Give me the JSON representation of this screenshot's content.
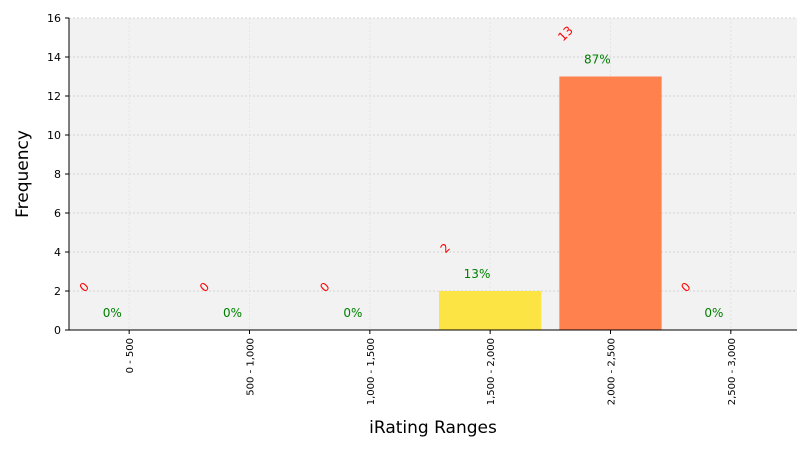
{
  "chart_data": {
    "type": "bar",
    "title": "",
    "xlabel": "iRating Ranges",
    "ylabel": "Frequency",
    "categories": [
      "0 - 500",
      "500 - 1,000",
      "1,000 - 1,500",
      "1,500 - 2,000",
      "2,000 - 2,500",
      "2,500 - 3,000"
    ],
    "values": [
      0,
      0,
      0,
      2,
      13,
      0
    ],
    "percent_labels": [
      "0%",
      "0%",
      "0%",
      "13%",
      "87%",
      "0%"
    ],
    "bar_colors": [
      "#fbe33a",
      "#fbe33a",
      "#fbe33a",
      "#fbe33a",
      "#ff7a45",
      "#ff7a45"
    ],
    "count_label_color": "#ff0000",
    "percent_label_color": "#008000",
    "plot_background": "#f2f2f2",
    "ylim": [
      0,
      16
    ],
    "yticks": [
      0,
      2,
      4,
      6,
      8,
      10,
      12,
      14,
      16
    ],
    "grid": true
  }
}
